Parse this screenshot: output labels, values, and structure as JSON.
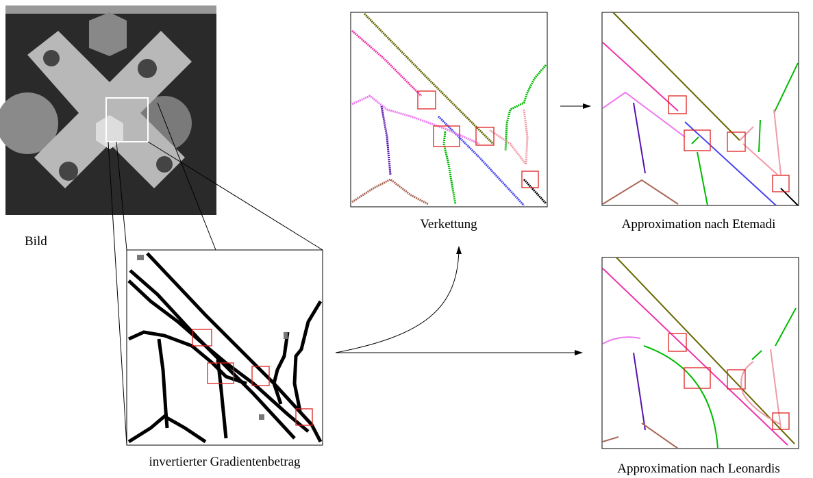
{
  "labels": {
    "image": "Bild",
    "gradient": "invertierter Gradientenbetrag",
    "chaining": "Verkettung",
    "etemadi": "Approximation nach Etemadi",
    "leonardis": "Approximation nach Leonardis"
  }
}
